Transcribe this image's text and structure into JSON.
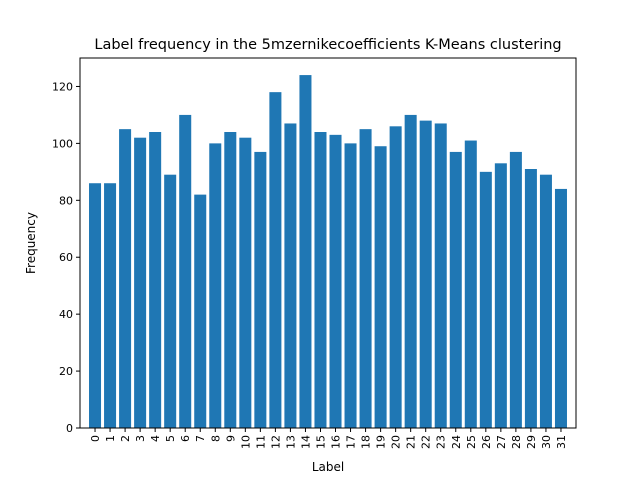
{
  "chart_data": {
    "type": "bar",
    "title": "Label frequency in the 5mzernikecoefficients K-Means clustering",
    "xlabel": "Label",
    "ylabel": "Frequency",
    "categories": [
      "0",
      "1",
      "2",
      "3",
      "4",
      "5",
      "6",
      "7",
      "8",
      "9",
      "10",
      "11",
      "12",
      "13",
      "14",
      "15",
      "16",
      "17",
      "18",
      "19",
      "20",
      "21",
      "22",
      "23",
      "24",
      "25",
      "26",
      "27",
      "28",
      "29",
      "30",
      "31"
    ],
    "values": [
      86,
      86,
      105,
      102,
      104,
      89,
      110,
      82,
      100,
      104,
      102,
      97,
      118,
      107,
      124,
      104,
      103,
      100,
      105,
      99,
      106,
      110,
      108,
      107,
      97,
      101,
      90,
      93,
      97,
      91,
      89,
      84
    ],
    "ylim": [
      0,
      130
    ],
    "yticks": [
      0,
      20,
      40,
      60,
      80,
      100,
      120
    ],
    "bar_color": "#1f77b4",
    "grid": false,
    "legend": "none"
  }
}
